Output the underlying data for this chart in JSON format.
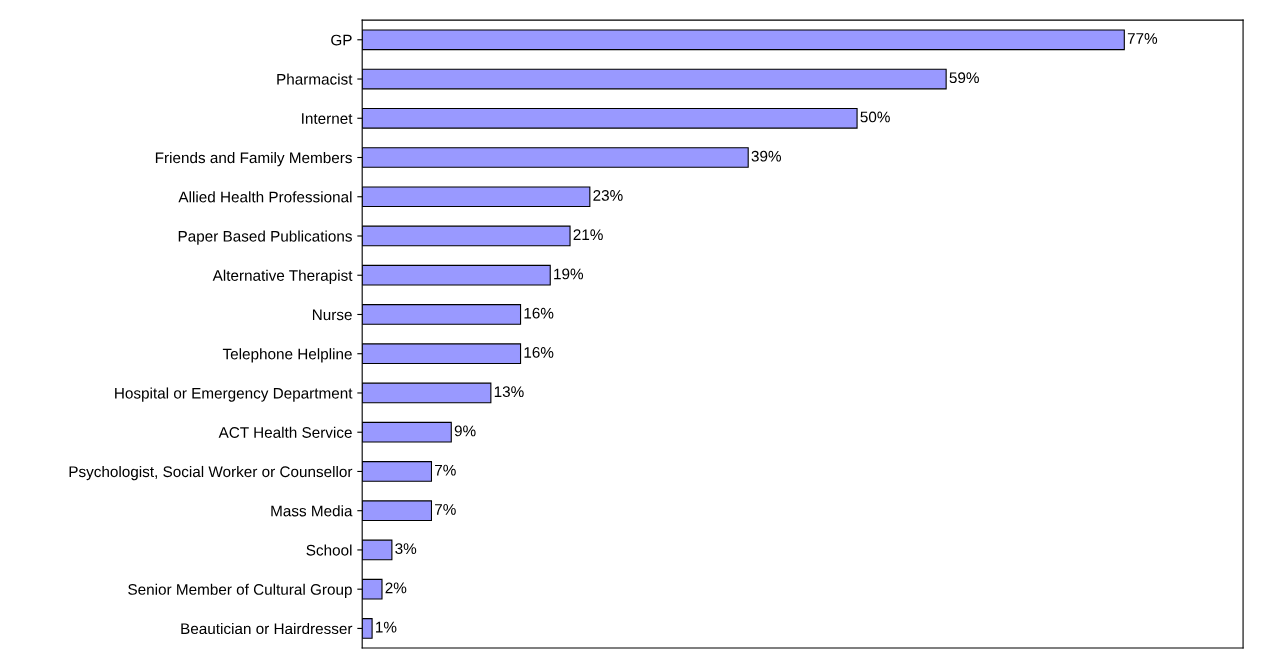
{
  "chart_data": {
    "type": "bar",
    "orientation": "horizontal",
    "categories": [
      "GP",
      "Pharmacist",
      "Internet",
      "Friends and Family Members",
      "Allied Health Professional",
      "Paper Based Publications",
      "Alternative Therapist",
      "Nurse",
      "Telephone Helpline",
      "Hospital or Emergency Department",
      "ACT Health Service",
      "Psychologist, Social Worker or Counsellor",
      "Mass Media",
      "School",
      "Senior Member of Cultural Group",
      "Beautician or Hairdresser"
    ],
    "values": [
      77,
      59,
      50,
      39,
      23,
      21,
      19,
      16,
      16,
      13,
      9,
      7,
      7,
      3,
      2,
      1
    ],
    "value_labels": [
      "77%",
      "59%",
      "50%",
      "39%",
      "23%",
      "21%",
      "19%",
      "16%",
      "16%",
      "13%",
      "9%",
      "7%",
      "7%",
      "3%",
      "2%",
      "1%"
    ],
    "color": "#9999ff",
    "xlim": [
      0,
      89
    ],
    "tick_labels": "y",
    "grid": false,
    "legend": false
  }
}
